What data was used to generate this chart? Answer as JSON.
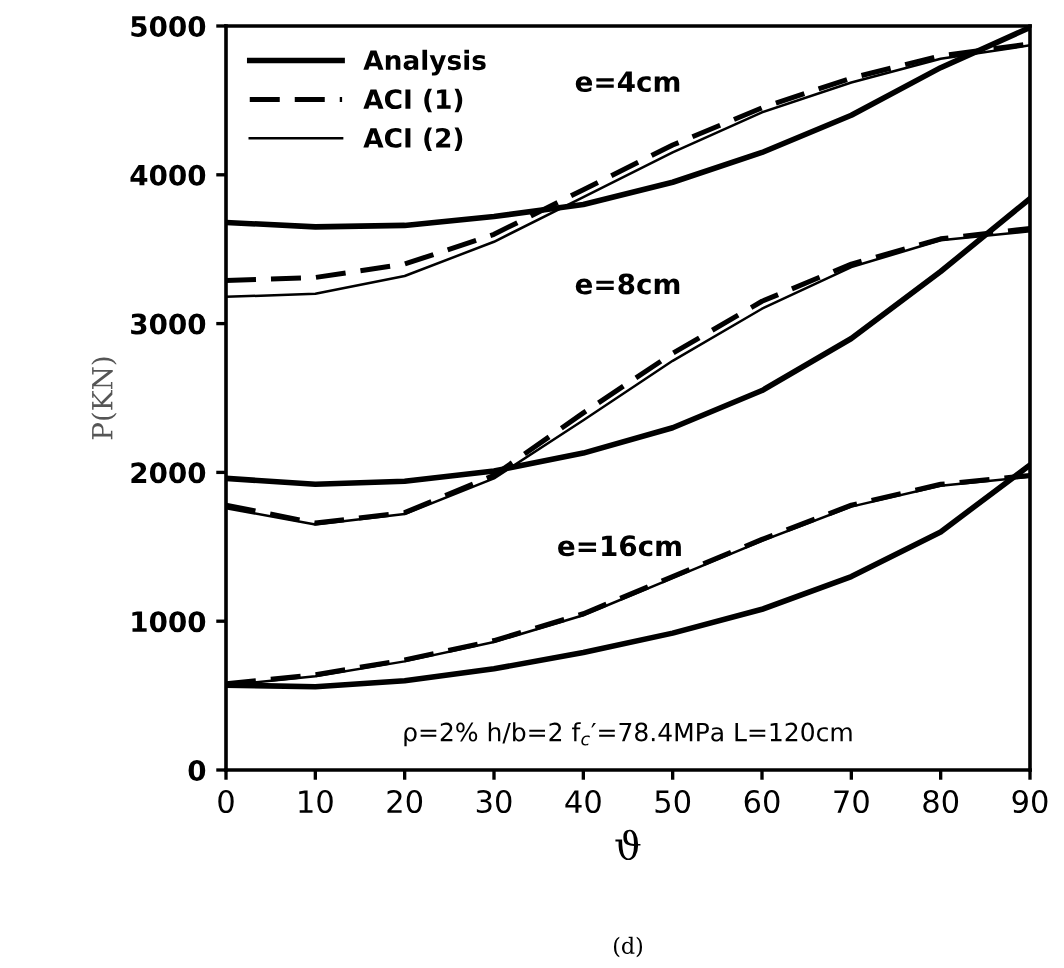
{
  "chart_data": {
    "type": "line",
    "xlabel": "ϑ",
    "ylabel": "P(KN)",
    "x": [
      0,
      10,
      20,
      30,
      40,
      50,
      60,
      70,
      80,
      90
    ],
    "series": [
      {
        "name": "Analysis",
        "color": "#000000",
        "line_style": "solid",
        "values": [
          3680,
          3650,
          3660,
          3720,
          3800,
          3950,
          4150,
          4400,
          4720,
          4990
        ]
      },
      {
        "name": "ACI (1)",
        "color": "#000000",
        "line_style": "dashed",
        "values": [
          3290,
          3310,
          3400,
          3600,
          3900,
          4200,
          4450,
          4650,
          4800,
          4880
        ]
      },
      {
        "name": "ACI (2)",
        "color": "#000000",
        "line_style": "solid",
        "values": [
          3180,
          3200,
          3320,
          3550,
          3850,
          4150,
          4420,
          4620,
          4780,
          4870
        ]
      },
      {
        "color": "#000000",
        "line_style": "solid",
        "values": [
          1960,
          1920,
          1940,
          2010,
          2130,
          2300,
          2550,
          2900,
          3350,
          3840
        ]
      },
      {
        "color": "#000000",
        "line_style": "dashed",
        "values": [
          1780,
          1660,
          1730,
          1980,
          2400,
          2800,
          3150,
          3400,
          3570,
          3640
        ]
      },
      {
        "color": "#000000",
        "line_style": "solid",
        "values": [
          1760,
          1650,
          1720,
          1960,
          2350,
          2750,
          3100,
          3380,
          3560,
          3620
        ]
      },
      {
        "color": "#000000",
        "line_style": "solid",
        "values": [
          570,
          560,
          600,
          680,
          790,
          920,
          1080,
          1300,
          1600,
          2050
        ]
      },
      {
        "color": "#000000",
        "line_style": "dashed",
        "values": [
          580,
          640,
          740,
          870,
          1050,
          1300,
          1550,
          1780,
          1920,
          1980
        ]
      },
      {
        "color": "#000000",
        "line_style": "solid",
        "values": [
          570,
          630,
          730,
          860,
          1040,
          1290,
          1540,
          1770,
          1910,
          1970
        ]
      }
    ],
    "xlim": [
      0,
      90
    ],
    "xticks": [
      0,
      10,
      20,
      30,
      40,
      50,
      60,
      70,
      80,
      90
    ],
    "ylim": [
      0,
      5000
    ],
    "yticks": [
      0,
      1000,
      2000,
      3000,
      4000,
      5000
    ],
    "grid": false,
    "legend": "top left",
    "marker": "none",
    "annotations": [
      "e=4cm",
      "e=8cm",
      "e=16cm",
      "ρ=2% h/b=2 f$_{c}$′=78.4MPa L=120cm",
      "(d)"
    ]
  }
}
